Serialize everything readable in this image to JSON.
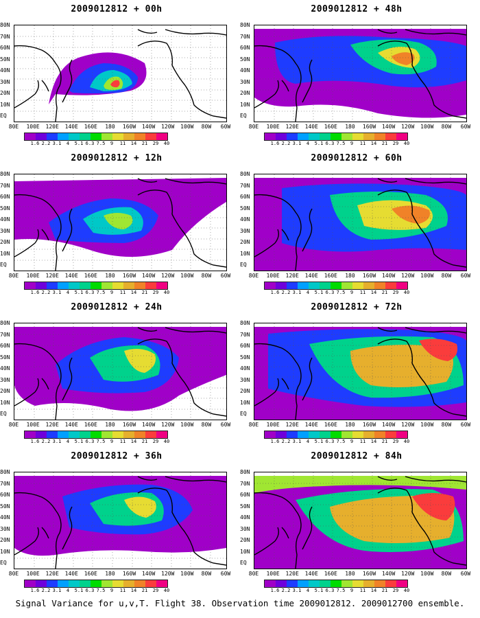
{
  "panels": [
    {
      "title": "2009012812 + 00h"
    },
    {
      "title": "2009012812 + 48h"
    },
    {
      "title": "2009012812 + 12h"
    },
    {
      "title": "2009012812 + 60h"
    },
    {
      "title": "2009012812 + 24h"
    },
    {
      "title": "2009012812 + 72h"
    },
    {
      "title": "2009012812 + 36h"
    },
    {
      "title": "2009012812 + 84h"
    }
  ],
  "lat_labels": [
    "80N",
    "70N",
    "60N",
    "50N",
    "40N",
    "30N",
    "20N",
    "10N",
    "EQ"
  ],
  "lon_labels": [
    "80E",
    "100E",
    "120E",
    "140E",
    "160E",
    "180",
    "160W",
    "140W",
    "120W",
    "100W",
    "80W",
    "60W"
  ],
  "colorbar": {
    "labels": [
      "1.6",
      "2.2",
      "3.1",
      "4",
      "5.1",
      "6.3",
      "7.5",
      "9",
      "11",
      "14",
      "21",
      "29",
      "40"
    ],
    "colors": [
      "#a000c8",
      "#6e00dc",
      "#1e3cff",
      "#00a0ff",
      "#00c8c8",
      "#00d28c",
      "#00dc00",
      "#a0e632",
      "#e6dc32",
      "#e6af2d",
      "#f08228",
      "#fa3c3c",
      "#f00082"
    ]
  },
  "footer": "Signal Variance for u,v,T. Flight 38. Observation time 2009012812. 2009012700 ensemble."
}
